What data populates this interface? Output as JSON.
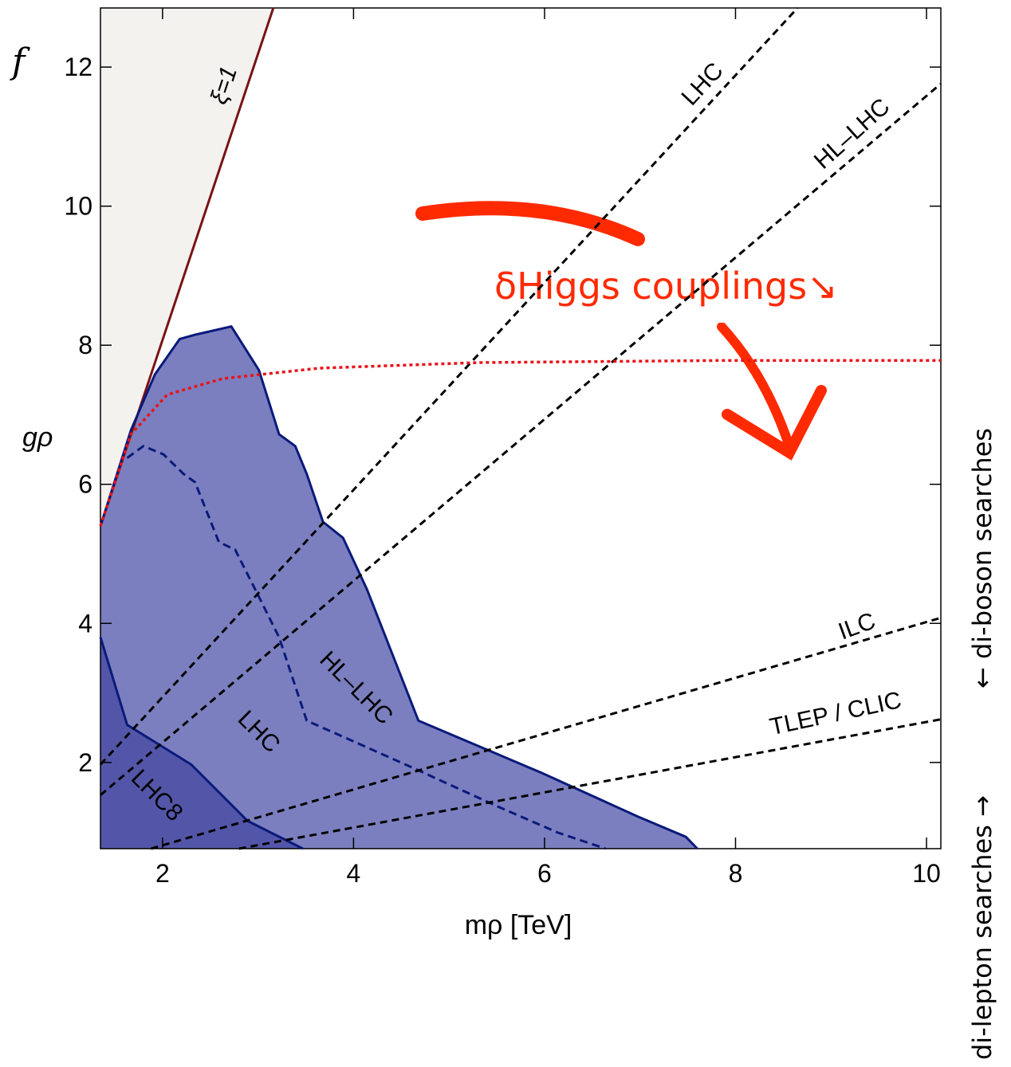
{
  "chart_data": {
    "type": "contour",
    "x_label": "mρ [TeV]",
    "y_label": "gρ",
    "y_label_top": "f",
    "xlim": [
      1.35,
      10.15
    ],
    "ylim": [
      0.76,
      12.85
    ],
    "xticks": [
      2,
      4,
      6,
      8,
      10
    ],
    "yticks": [
      2,
      4,
      6,
      8,
      10,
      12
    ],
    "annotations": [
      "δHiggs couplings↘",
      "di-lepton searches →",
      "← di-boson searches"
    ],
    "series": [
      {
        "name": "ξ=1",
        "kind": "line",
        "fill_above": "#f4f2ef",
        "color": "#7a1416",
        "x": [
          1.35,
          3.16
        ],
        "y": [
          5.4,
          12.85
        ]
      },
      {
        "name": "HL–LHC",
        "kind": "region",
        "color": "#0a1a7a",
        "fill": "#7b7fbf",
        "x": [
          1.35,
          1.67,
          1.92,
          2.18,
          2.34,
          2.72,
          3.01,
          3.22,
          3.39,
          3.51,
          3.68,
          3.89,
          4.14,
          4.68,
          5.97,
          6.98,
          7.48,
          7.6
        ],
        "y": [
          5.4,
          6.78,
          7.58,
          8.09,
          8.15,
          8.27,
          7.64,
          6.72,
          6.55,
          6.15,
          5.46,
          5.23,
          4.49,
          2.6,
          1.85,
          1.22,
          0.93,
          0.76
        ]
      },
      {
        "name": "LHC",
        "kind": "dashed",
        "color": "#0a1a7a",
        "x": [
          1.63,
          1.8,
          2.01,
          2.22,
          2.34,
          2.59,
          2.76,
          2.97,
          3.22,
          3.51,
          3.89,
          4.64,
          5.47,
          6.14,
          6.64
        ],
        "y": [
          6.38,
          6.55,
          6.43,
          6.15,
          6.03,
          5.17,
          5.06,
          4.49,
          3.8,
          2.6,
          2.37,
          1.91,
          1.39,
          0.99,
          0.76
        ]
      },
      {
        "name": "LHC8",
        "kind": "region",
        "color": "#0a1a7a",
        "fill": "#5356a8",
        "x": [
          1.35,
          1.63,
          2.3,
          2.89,
          3.47
        ],
        "y": [
          3.8,
          2.54,
          1.97,
          1.16,
          0.76
        ]
      },
      {
        "name": "LHC",
        "kind": "dashed",
        "color": "#000000",
        "x": [
          1.35,
          8.65
        ],
        "y": [
          1.97,
          12.85
        ]
      },
      {
        "name": "HL–LHC",
        "kind": "dashed",
        "color": "#000000",
        "x": [
          1.35,
          10.15
        ],
        "y": [
          1.53,
          11.76
        ]
      },
      {
        "name": "ILC",
        "kind": "dashed",
        "color": "#000000",
        "x": [
          1.88,
          10.15
        ],
        "y": [
          0.76,
          4.08
        ]
      },
      {
        "name": "TLEP / CLIC",
        "kind": "dashed",
        "color": "#000000",
        "x": [
          2.8,
          10.15
        ],
        "y": [
          0.76,
          2.62
        ]
      },
      {
        "kind": "dotted",
        "color": "#e8141a",
        "x": [
          1.35,
          1.67,
          2.05,
          2.63,
          3.64,
          5.31,
          7.81,
          10.15
        ],
        "y": [
          5.4,
          6.72,
          7.29,
          7.52,
          7.67,
          7.75,
          7.78,
          7.78
        ]
      }
    ]
  }
}
